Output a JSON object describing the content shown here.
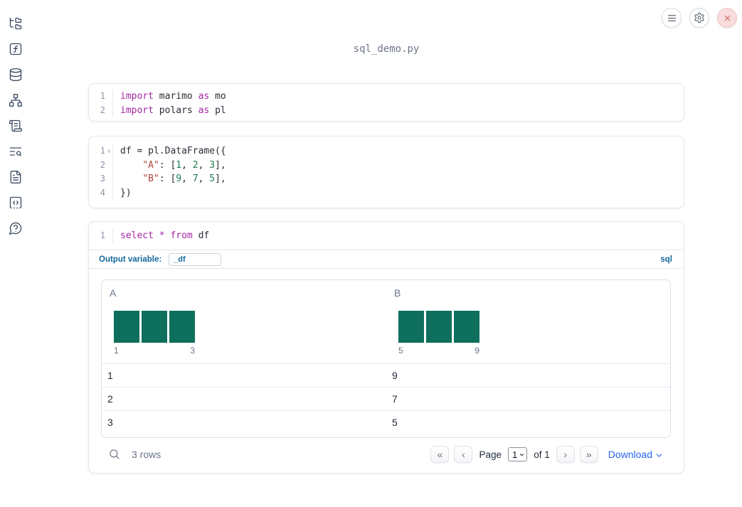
{
  "topbar": {
    "filename": "sql_demo.py"
  },
  "sidebar": {
    "items": [
      {
        "id": "files",
        "icon": "folder-tree-icon"
      },
      {
        "id": "variables",
        "icon": "function-square-icon"
      },
      {
        "id": "data-sources",
        "icon": "database-icon"
      },
      {
        "id": "dependencies",
        "icon": "network-icon"
      },
      {
        "id": "scratchpad",
        "icon": "scroll-icon"
      },
      {
        "id": "logs",
        "icon": "text-search-icon"
      },
      {
        "id": "documentation",
        "icon": "file-text-icon"
      },
      {
        "id": "snippets",
        "icon": "snippet-code-icon"
      },
      {
        "id": "help",
        "icon": "help-circle-icon"
      }
    ]
  },
  "colors": {
    "histogram_bar": "#0e6f5c",
    "keyword": "#a626a4",
    "string": "#b0443c",
    "number": "#1e7a4e",
    "accent_blue": "#15689c",
    "download_blue": "#2563eb"
  },
  "cells": [
    {
      "type": "python",
      "lines": [
        {
          "num": "1",
          "tokens": [
            {
              "t": "import",
              "c": "kw"
            },
            {
              "t": " marimo ",
              "c": "pl"
            },
            {
              "t": "as",
              "c": "kw"
            },
            {
              "t": " mo",
              "c": "pl"
            }
          ]
        },
        {
          "num": "2",
          "tokens": [
            {
              "t": "import",
              "c": "kw"
            },
            {
              "t": " polars ",
              "c": "pl"
            },
            {
              "t": "as",
              "c": "kw"
            },
            {
              "t": " pl",
              "c": "pl"
            }
          ]
        }
      ]
    },
    {
      "type": "python",
      "lines": [
        {
          "num": "1",
          "fold": true,
          "tokens": [
            {
              "t": "df = pl.DataFrame({",
              "c": "pl"
            }
          ]
        },
        {
          "num": "2",
          "tokens": [
            {
              "t": "    ",
              "c": "pl"
            },
            {
              "t": "\"A\"",
              "c": "st"
            },
            {
              "t": ": [",
              "c": "pl"
            },
            {
              "t": "1",
              "c": "nu"
            },
            {
              "t": ", ",
              "c": "pl"
            },
            {
              "t": "2",
              "c": "nu"
            },
            {
              "t": ", ",
              "c": "pl"
            },
            {
              "t": "3",
              "c": "nu"
            },
            {
              "t": "],",
              "c": "pl"
            }
          ]
        },
        {
          "num": "3",
          "tokens": [
            {
              "t": "    ",
              "c": "pl"
            },
            {
              "t": "\"B\"",
              "c": "st"
            },
            {
              "t": ": [",
              "c": "pl"
            },
            {
              "t": "9",
              "c": "nu"
            },
            {
              "t": ", ",
              "c": "pl"
            },
            {
              "t": "7",
              "c": "nu"
            },
            {
              "t": ", ",
              "c": "pl"
            },
            {
              "t": "5",
              "c": "nu"
            },
            {
              "t": "],",
              "c": "pl"
            }
          ]
        },
        {
          "num": "4",
          "tokens": [
            {
              "t": "})",
              "c": "pl"
            }
          ]
        }
      ]
    },
    {
      "type": "sql",
      "lines": [
        {
          "num": "1",
          "tokens": [
            {
              "t": "select",
              "c": "kw"
            },
            {
              "t": " ",
              "c": "pl"
            },
            {
              "t": "*",
              "c": "kw"
            },
            {
              "t": " ",
              "c": "pl"
            },
            {
              "t": "from",
              "c": "kw"
            },
            {
              "t": " df",
              "c": "pl"
            }
          ]
        }
      ],
      "output_variable_label": "Output variable:",
      "output_variable_value": "_df",
      "language_badge": "sql"
    }
  ],
  "table": {
    "columns": [
      {
        "name": "A",
        "hist": {
          "bars": [
            1,
            1,
            1
          ],
          "min_label": "1",
          "max_label": "3"
        }
      },
      {
        "name": "B",
        "hist": {
          "bars": [
            1,
            1,
            1
          ],
          "min_label": "5",
          "max_label": "9"
        }
      }
    ],
    "rows": [
      [
        "1",
        "9"
      ],
      [
        "2",
        "7"
      ],
      [
        "3",
        "5"
      ]
    ],
    "row_count_label": "3 rows",
    "pagination": {
      "icons": [
        "«",
        "‹",
        "›",
        "»"
      ],
      "page_label": "Page",
      "page_value": "1",
      "of_label": "of 1"
    },
    "download_label": "Download"
  }
}
